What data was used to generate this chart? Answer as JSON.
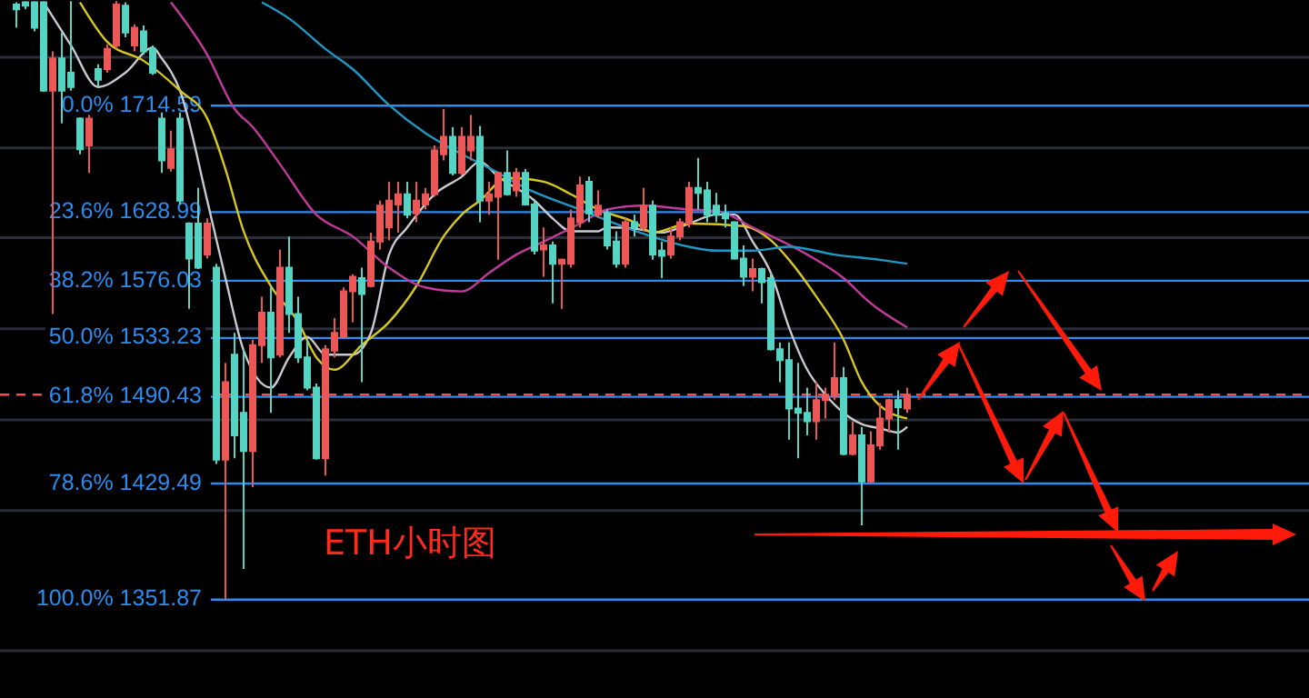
{
  "chart_data": {
    "type": "candlestick",
    "categories": [
      null,
      null,
      null,
      null,
      null,
      null,
      null,
      null,
      null,
      null,
      null,
      null,
      null,
      null,
      null,
      null,
      null,
      null,
      null,
      null,
      null,
      null,
      null,
      null,
      null,
      null,
      null,
      null,
      null,
      null,
      null,
      null,
      null,
      null,
      null,
      null,
      null,
      null,
      null,
      null,
      null,
      null,
      null,
      null,
      null,
      null,
      null,
      null,
      null,
      null,
      null,
      null,
      null,
      null,
      null,
      null,
      null,
      null,
      null,
      null,
      null,
      null,
      null,
      null,
      null,
      null,
      null,
      null,
      null,
      null,
      null,
      null,
      null,
      null,
      null,
      null,
      null,
      null,
      null,
      null,
      null,
      null,
      null,
      null,
      null,
      null,
      null,
      null,
      null,
      null,
      null,
      null,
      null,
      null,
      null,
      null,
      null,
      null,
      null
    ],
    "ohlc": [
      [
        1800,
        1802,
        1780,
        1796
      ],
      [
        1802,
        1803,
        1796,
        1799
      ],
      [
        1802,
        1803,
        1777,
        1780
      ],
      [
        1802,
        1803,
        1726,
        1727
      ],
      [
        1727,
        1760,
        1551,
        1754
      ],
      [
        1754,
        1776,
        1700,
        1727
      ],
      [
        1742,
        1803,
        1727,
        1730
      ],
      [
        1704,
        1705,
        1675,
        1679
      ],
      [
        1682,
        1707,
        1660,
        1704
      ],
      [
        1745,
        1749,
        1730,
        1736
      ],
      [
        1745,
        1766,
        1742,
        1762
      ],
      [
        1765,
        1803,
        1762,
        1800
      ],
      [
        1799,
        1802,
        1772,
        1776
      ],
      [
        1765,
        1783,
        1760,
        1780
      ],
      [
        1777,
        1782,
        1757,
        1760
      ],
      [
        1762,
        1765,
        1740,
        1742
      ],
      [
        1704,
        1709,
        1660,
        1670
      ],
      [
        1664,
        1694,
        1661,
        1679
      ],
      [
        1704,
        1709,
        1635,
        1638
      ],
      [
        1620,
        1621,
        1555,
        1593
      ],
      [
        1620,
        1648,
        1585,
        1586
      ],
      [
        1596,
        1624,
        1593,
        1620
      ],
      [
        1586,
        1589,
        1443,
        1446
      ],
      [
        1446,
        1515,
        1352,
        1501
      ],
      [
        1521,
        1537,
        1447,
        1463
      ],
      [
        1479,
        1525,
        1372,
        1452
      ],
      [
        1452,
        1532,
        1427,
        1528
      ],
      [
        1528,
        1564,
        1515,
        1552
      ],
      [
        1552,
        1572,
        1479,
        1519
      ],
      [
        1521,
        1600,
        1519,
        1586
      ],
      [
        1586,
        1610,
        1537,
        1551
      ],
      [
        1551,
        1564,
        1515,
        1519
      ],
      [
        1519,
        1532,
        1495,
        1497
      ],
      [
        1497,
        1500,
        1446,
        1447
      ],
      [
        1447,
        1528,
        1435,
        1525
      ],
      [
        1524,
        1548,
        1519,
        1537
      ],
      [
        1534,
        1571,
        1533,
        1568
      ],
      [
        1568,
        1581,
        1545,
        1579
      ],
      [
        1578,
        1586,
        1501,
        1566
      ],
      [
        1572,
        1613,
        1571,
        1606
      ],
      [
        1606,
        1638,
        1600,
        1634
      ],
      [
        1617,
        1653,
        1607,
        1638
      ],
      [
        1635,
        1653,
        1613,
        1643
      ],
      [
        1643,
        1653,
        1624,
        1627
      ],
      [
        1628,
        1653,
        1621,
        1638
      ],
      [
        1635,
        1648,
        1631,
        1643
      ],
      [
        1643,
        1682,
        1641,
        1678
      ],
      [
        1675,
        1712,
        1670,
        1689
      ],
      [
        1689,
        1697,
        1658,
        1660
      ],
      [
        1660,
        1697,
        1658,
        1689
      ],
      [
        1678,
        1707,
        1670,
        1689
      ],
      [
        1689,
        1698,
        1621,
        1638
      ],
      [
        1638,
        1653,
        1627,
        1643
      ],
      [
        1641,
        1661,
        1592,
        1660
      ],
      [
        1660,
        1678,
        1642,
        1643
      ],
      [
        1646,
        1664,
        1641,
        1660
      ],
      [
        1660,
        1663,
        1634,
        1635
      ],
      [
        1635,
        1638,
        1596,
        1599
      ],
      [
        1600,
        1617,
        1579,
        1603
      ],
      [
        1603,
        1606,
        1559,
        1589
      ],
      [
        1589,
        1593,
        1555,
        1592
      ],
      [
        1589,
        1631,
        1586,
        1624
      ],
      [
        1621,
        1657,
        1617,
        1650
      ],
      [
        1653,
        1657,
        1621,
        1628
      ],
      [
        1627,
        1646,
        1624,
        1634
      ],
      [
        1628,
        1631,
        1600,
        1603
      ],
      [
        1606,
        1614,
        1586,
        1589
      ],
      [
        1589,
        1624,
        1586,
        1621
      ],
      [
        1621,
        1627,
        1610,
        1617
      ],
      [
        1617,
        1648,
        1614,
        1634
      ],
      [
        1634,
        1638,
        1592,
        1596
      ],
      [
        1599,
        1606,
        1578,
        1595
      ],
      [
        1596,
        1617,
        1593,
        1610
      ],
      [
        1610,
        1624,
        1607,
        1621
      ],
      [
        1620,
        1653,
        1617,
        1648
      ],
      [
        1648,
        1672,
        1631,
        1644
      ],
      [
        1646,
        1653,
        1621,
        1627
      ],
      [
        1634,
        1644,
        1621,
        1627
      ],
      [
        1628,
        1635,
        1617,
        1624
      ],
      [
        1621,
        1622,
        1592,
        1593
      ],
      [
        1593,
        1603,
        1572,
        1579
      ],
      [
        1579,
        1593,
        1568,
        1585
      ],
      [
        1585,
        1586,
        1559,
        1575
      ],
      [
        1578,
        1582,
        1524,
        1525
      ],
      [
        1525,
        1530,
        1501,
        1517
      ],
      [
        1517,
        1530,
        1460,
        1482
      ],
      [
        1482,
        1515,
        1447,
        1479
      ],
      [
        1479,
        1497,
        1463,
        1473
      ],
      [
        1473,
        1501,
        1460,
        1488
      ],
      [
        1488,
        1497,
        1475,
        1492
      ],
      [
        1491,
        1530,
        1488,
        1504
      ],
      [
        1504,
        1512,
        1449,
        1450
      ],
      [
        1450,
        1473,
        1449,
        1463
      ],
      [
        1463,
        1469,
        1401,
        1431
      ],
      [
        1431,
        1466,
        1430,
        1456
      ],
      [
        1456,
        1486,
        1453,
        1475
      ],
      [
        1475,
        1489,
        1465,
        1488
      ],
      [
        1488,
        1495,
        1453,
        1483
      ],
      [
        1482,
        1497,
        1479,
        1492
      ]
    ],
    "colors": [
      "#55d3c3",
      "#55d3c3",
      "#55d3c3",
      "#55d3c3",
      "#eb5757",
      "#55d3c3",
      "#55d3c3",
      "#55d3c3",
      "#eb5757",
      "#55d3c3",
      "#eb5757",
      "#eb5757",
      "#55d3c3",
      "#eb5757",
      "#55d3c3",
      "#55d3c3",
      "#55d3c3",
      "#eb5757",
      "#55d3c3",
      "#55d3c3",
      "#55d3c3",
      "#eb5757",
      "#55d3c3",
      "#eb5757",
      "#55d3c3",
      "#55d3c3",
      "#eb5757",
      "#eb5757",
      "#55d3c3",
      "#eb5757",
      "#55d3c3",
      "#55d3c3",
      "#55d3c3",
      "#55d3c3",
      "#eb5757",
      "#eb5757",
      "#eb5757",
      "#eb5757",
      "#55d3c3",
      "#eb5757",
      "#eb5757",
      "#eb5757",
      "#eb5757",
      "#55d3c3",
      "#eb5757",
      "#eb5757",
      "#eb5757",
      "#eb5757",
      "#55d3c3",
      "#eb5757",
      "#eb5757",
      "#55d3c3",
      "#eb5757",
      "#eb5757",
      "#55d3c3",
      "#eb5757",
      "#55d3c3",
      "#55d3c3",
      "#eb5757",
      "#55d3c3",
      "#eb5757",
      "#eb5757",
      "#eb5757",
      "#55d3c3",
      "#eb5757",
      "#55d3c3",
      "#55d3c3",
      "#eb5757",
      "#55d3c3",
      "#eb5757",
      "#55d3c3",
      "#55d3c3",
      "#eb5757",
      "#eb5757",
      "#eb5757",
      "#55d3c3",
      "#55d3c3",
      "#55d3c3",
      "#55d3c3",
      "#55d3c3",
      "#55d3c3",
      "#eb5757",
      "#55d3c3",
      "#55d3c3",
      "#55d3c3",
      "#55d3c3",
      "#55d3c3",
      "#55d3c3",
      "#eb5757",
      "#eb5757",
      "#eb5757",
      "#55d3c3",
      "#eb5757",
      "#55d3c3",
      "#eb5757",
      "#eb5757",
      "#eb5757",
      "#55d3c3",
      "#eb5757"
    ],
    "series": [
      {
        "type": "line",
        "color": "#c9c9d2",
        "values": [
          null,
          null,
          null,
          1802,
          null,
          null,
          1765,
          null,
          null,
          1730,
          null,
          null,
          1742,
          null,
          null,
          1763,
          1754,
          null,
          1727,
          null,
          null,
          1638,
          null,
          1578,
          null,
          1524,
          null,
          null,
          1497,
          null,
          1519,
          null,
          1534,
          null,
          1521,
          null,
          null,
          1521,
          null,
          1537,
          null,
          1596,
          null,
          1617,
          null,
          null,
          1643,
          null,
          null,
          1657,
          null,
          1669,
          null,
          1657,
          null,
          null,
          null,
          1638,
          null,
          1624,
          null,
          1614,
          null,
          null,
          1614,
          1617,
          null,
          null,
          1616,
          null,
          null,
          1613,
          null,
          null,
          1620,
          null,
          null,
          1627,
          null,
          1627,
          null,
          1606,
          null,
          1582,
          null,
          1541,
          null,
          1510,
          null,
          1492,
          null,
          1479,
          null,
          1471,
          null,
          1468,
          null,
          1465,
          1469
        ]
      },
      {
        "type": "line",
        "color": "#d8c81e",
        "values": [
          null,
          null,
          null,
          null,
          null,
          null,
          null,
          1802,
          null,
          null,
          1768,
          null,
          null,
          null,
          1752,
          null,
          null,
          null,
          1727,
          null,
          null,
          1704,
          null,
          1663,
          null,
          1614,
          null,
          null,
          1572,
          null,
          null,
          1545,
          null,
          1519,
          null,
          1510,
          null,
          null,
          1528,
          null,
          null,
          1545,
          null,
          null,
          1572,
          null,
          null,
          1610,
          null,
          1627,
          null,
          1638,
          null,
          null,
          1656,
          null,
          null,
          null,
          1653,
          null,
          null,
          1643,
          null,
          null,
          1631,
          null,
          null,
          null,
          1621,
          null,
          1613,
          null,
          null,
          null,
          1620,
          null,
          null,
          null,
          null,
          null,
          1618,
          null,
          null,
          1607,
          null,
          1592,
          null,
          null,
          1564,
          null,
          null,
          1532,
          null,
          1501,
          null,
          1484,
          null,
          null,
          1475
        ]
      },
      {
        "type": "line",
        "color": "#c23a9c",
        "values": [
          null,
          null,
          null,
          null,
          null,
          null,
          null,
          null,
          null,
          null,
          null,
          null,
          null,
          null,
          null,
          null,
          null,
          1802,
          null,
          null,
          null,
          1757,
          null,
          null,
          1712,
          null,
          1697,
          null,
          null,
          1667,
          null,
          null,
          null,
          1627,
          null,
          null,
          null,
          1610,
          null,
          null,
          null,
          1586,
          null,
          null,
          null,
          1571,
          null,
          null,
          null,
          1568,
          null,
          null,
          1582,
          null,
          null,
          1596,
          null,
          null,
          1606,
          null,
          null,
          null,
          1620,
          null,
          null,
          1631,
          null,
          null,
          null,
          1634,
          null,
          null,
          null,
          null,
          1631,
          null,
          null,
          1630,
          null,
          null,
          null,
          1617,
          null,
          null,
          null,
          null,
          null,
          1596,
          null,
          null,
          null,
          1578,
          null,
          null,
          1559,
          null,
          null,
          null,
          1541
        ]
      },
      {
        "type": "line",
        "color": "#1f98c4",
        "values": [
          null,
          null,
          null,
          null,
          null,
          null,
          null,
          null,
          null,
          null,
          null,
          null,
          null,
          null,
          null,
          null,
          null,
          null,
          null,
          null,
          null,
          null,
          null,
          null,
          null,
          null,
          null,
          1802,
          null,
          null,
          1788,
          null,
          null,
          null,
          1762,
          null,
          null,
          1745,
          null,
          null,
          null,
          1715,
          null,
          null,
          null,
          1692,
          null,
          null,
          null,
          1675,
          null,
          null,
          1664,
          null,
          null,
          null,
          1648,
          null,
          null,
          null,
          null,
          null,
          1631,
          null,
          null,
          null,
          null,
          1617,
          null,
          null,
          null,
          null,
          null,
          null,
          1602,
          null,
          null,
          1599,
          null,
          null,
          null,
          1599,
          null,
          null,
          null,
          1602,
          null,
          null,
          null,
          null,
          1596,
          null,
          null,
          null,
          null,
          1592,
          null,
          null,
          1589
        ]
      }
    ],
    "log": true,
    "ylim": [
      1319,
      1804
    ],
    "yticks": [
      {
        "value": 1755,
        "label": null
      },
      {
        "value": 1680,
        "label": null
      },
      {
        "value": 1609,
        "label": null
      },
      {
        "value": 1540,
        "label": null
      },
      {
        "value": 1474,
        "label": null
      },
      {
        "value": 1411,
        "label": null
      }
    ],
    "grid": "y",
    "ref_lines": [
      {
        "axis": "y",
        "value": 1714.59,
        "label": "0.0% 1714.59",
        "color": "#2a8df0"
      },
      {
        "axis": "y",
        "value": 1628.99,
        "label": "23.6% 1628.99",
        "color": "#2a8df0"
      },
      {
        "axis": "y",
        "value": 1576.03,
        "label": "38.2% 1576.03",
        "color": "#2a8df0"
      },
      {
        "axis": "y",
        "value": 1533.23,
        "label": "50.0% 1533.23",
        "color": "#2a8df0"
      },
      {
        "axis": "y",
        "value": 1490.43,
        "label": "61.8% 1490.43",
        "color": "#2a8df0"
      },
      {
        "axis": "y",
        "value": 1429.49,
        "label": "78.6% 1429.49",
        "color": "#2a8df0"
      },
      {
        "axis": "y",
        "value": 1351.87,
        "label": "100.0% 1351.87",
        "color": "#2a8df0"
      },
      {
        "axis": "y",
        "value": 1492,
        "color": "#f05050",
        "line_style": "dashed"
      }
    ],
    "annotations": [
      "ETH小时图"
    ]
  }
}
